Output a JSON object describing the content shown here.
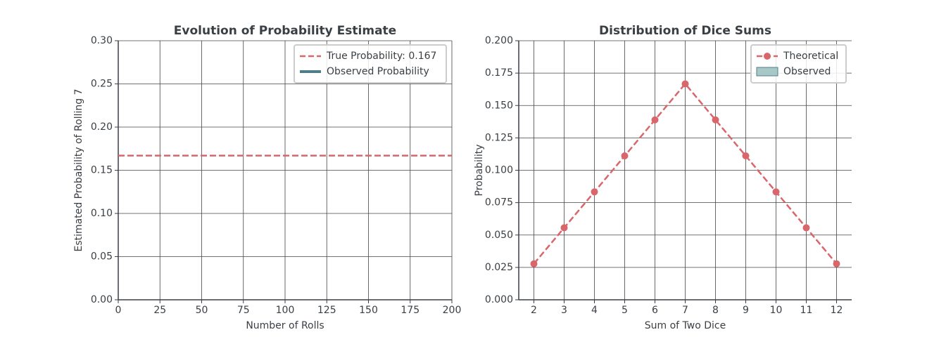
{
  "chart_data": [
    {
      "type": "line",
      "title": "Evolution of Probability Estimate",
      "xlabel": "Number of Rolls",
      "ylabel": "Estimated Probability of Rolling 7",
      "xlim": [
        0,
        200
      ],
      "xticks": [
        0,
        25,
        50,
        75,
        100,
        125,
        150,
        175,
        200
      ],
      "ylim": [
        0,
        0.3
      ],
      "yticks": [
        {
          "value": 0,
          "label": "0.00"
        },
        0.05,
        {
          "value": 0.1,
          "label": "0.10"
        },
        0.15,
        {
          "value": 0.2,
          "label": "0.20"
        },
        0.25,
        {
          "value": 0.3,
          "label": "0.30"
        }
      ],
      "grid": true,
      "legend": "upper right",
      "hline": {
        "name": "True Probability: 0.167",
        "value": 0.167,
        "color": "#d9666a",
        "style": "dashed"
      },
      "series": [
        {
          "name": "Observed Probability",
          "kind": "line",
          "color": "#4f7f86",
          "x": [],
          "values": []
        }
      ]
    },
    {
      "type": "line",
      "title": "Distribution of Dice Sums",
      "xlabel": "Sum of Two Dice",
      "ylabel": "Probability",
      "xlim": [
        1.5,
        12.5
      ],
      "xticks": [
        2,
        3,
        4,
        5,
        6,
        7,
        8,
        9,
        10,
        11,
        12
      ],
      "ylim": [
        0,
        0.2
      ],
      "yticks": [
        {
          "value": 0,
          "label": "0.000"
        },
        0.025,
        {
          "value": 0.05,
          "label": "0.050"
        },
        0.075,
        {
          "value": 0.1,
          "label": "0.100"
        },
        0.125,
        {
          "value": 0.15,
          "label": "0.150"
        },
        0.175,
        {
          "value": 0.2,
          "label": "0.200"
        }
      ],
      "grid": true,
      "legend": "upper right",
      "series": [
        {
          "name": "Theoretical",
          "kind": "line",
          "style": "dashed",
          "marker": true,
          "color": "#d9666a",
          "x": [
            2,
            3,
            4,
            5,
            6,
            7,
            8,
            9,
            10,
            11,
            12
          ],
          "values": [
            0.0278,
            0.0556,
            0.0833,
            0.1111,
            0.1389,
            0.1667,
            0.1389,
            0.1111,
            0.0833,
            0.0556,
            0.0278
          ]
        },
        {
          "name": "Observed",
          "kind": "bar",
          "color": "#a8c8c8",
          "edge": "#4f7f86",
          "x": [],
          "values": []
        }
      ]
    }
  ]
}
